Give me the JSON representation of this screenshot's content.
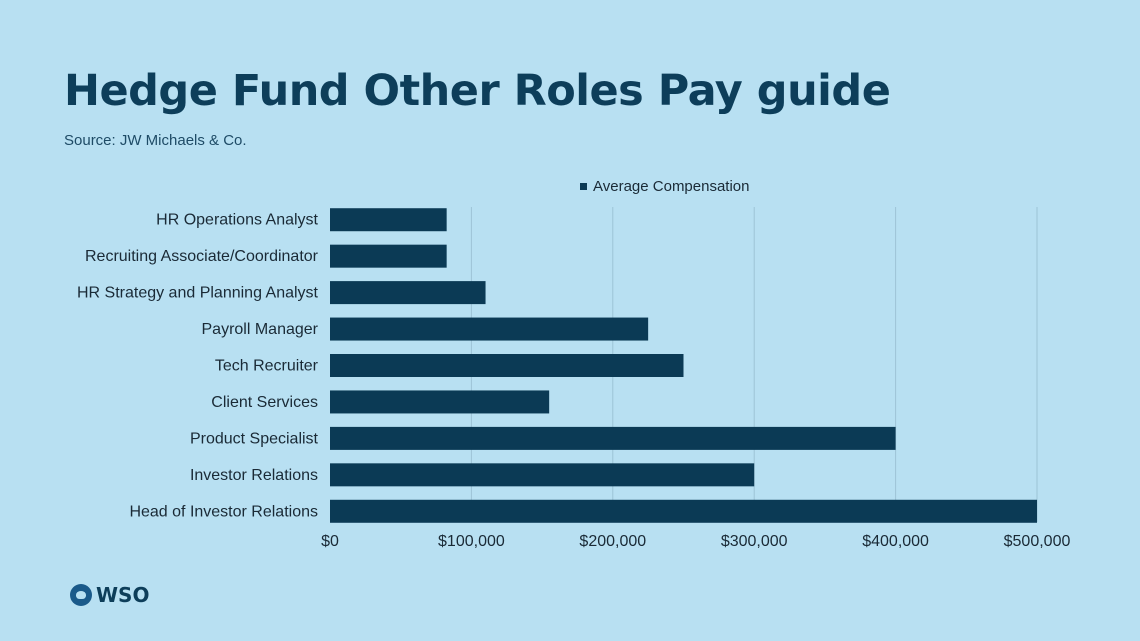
{
  "page": {
    "title": "Hedge Fund Other Roles Pay guide",
    "subtitle": "Source: JW Michaels & Co.",
    "logo_text": "WSO"
  },
  "colors": {
    "background": "#b8e0f2",
    "bar": "#0b3a55",
    "title": "#0d3e5a",
    "grid": "#9dc3d6"
  },
  "chart_data": {
    "type": "bar",
    "orientation": "horizontal",
    "categories": [
      "HR Operations Analyst",
      "Recruiting Associate/Coordinator",
      "HR Strategy and Planning Analyst",
      "Payroll Manager",
      "Tech Recruiter",
      "Client Services",
      "Product Specialist",
      "Investor Relations",
      "Head of Investor Relations"
    ],
    "series": [
      {
        "name": "Average Compensation",
        "values": [
          82500,
          82500,
          110000,
          225000,
          250000,
          155000,
          400000,
          300000,
          500000
        ]
      }
    ],
    "xlim": [
      0,
      500000
    ],
    "xticks": [
      0,
      100000,
      200000,
      300000,
      400000,
      500000
    ],
    "xtick_labels": [
      "$0",
      "$100,000",
      "$200,000",
      "$300,000",
      "$400,000",
      "$500,000"
    ],
    "grid": true,
    "legend_position": "top-center"
  }
}
